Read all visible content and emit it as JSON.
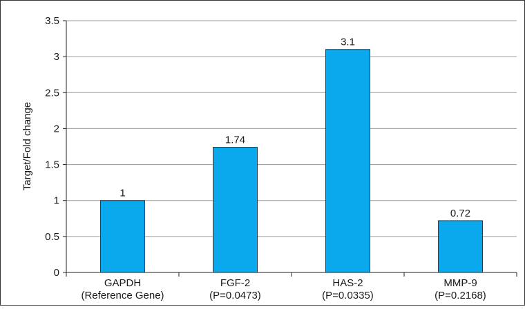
{
  "chart_data": {
    "type": "bar",
    "title": "",
    "xlabel": "",
    "ylabel": "Target/Fold change",
    "ylim": [
      0,
      3.5
    ],
    "yticks": [
      "0",
      "0.5",
      "1",
      "1.5",
      "2",
      "2.5",
      "3",
      "3.5"
    ],
    "grid": "horizontal",
    "legend": "none",
    "categories": [
      {
        "line1": "GAPDH",
        "line2": "(Reference Gene)"
      },
      {
        "line1": "FGF-2",
        "line2": "(P=0.0473)"
      },
      {
        "line1": "HAS-2",
        "line2": "(P=0.0335)"
      },
      {
        "line1": "MMP-9",
        "line2": "(P=0.2168)"
      }
    ],
    "values": [
      1,
      1.74,
      3.1,
      0.72
    ],
    "data_labels": [
      "1",
      "1.74",
      "3.1",
      "0.72"
    ],
    "colors": {
      "bar_fill": "#0AA8EC",
      "bar_stroke": "#2b3a45",
      "grid": "#9a9a9a",
      "axis": "#222222"
    }
  }
}
